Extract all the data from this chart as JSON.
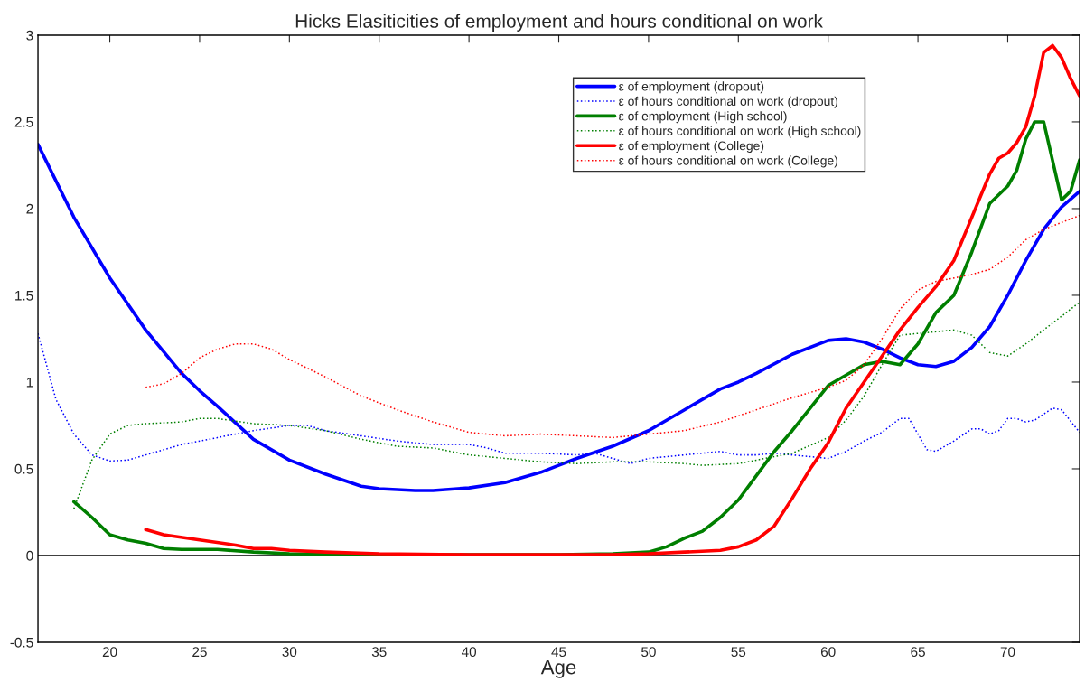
{
  "chart_data": {
    "type": "line",
    "title": "Hicks Elasiticities of employment and hours conditional on work",
    "xlabel": "Age",
    "xlim": [
      16,
      74
    ],
    "xticks": [
      20,
      25,
      30,
      35,
      40,
      45,
      50,
      55,
      60,
      65,
      70
    ],
    "ylim": [
      -0.5,
      3
    ],
    "yticks": [
      -0.5,
      0,
      0.5,
      1,
      1.5,
      2,
      2.5,
      3
    ],
    "grid": false,
    "legend": "top right",
    "ref_lines": [
      {
        "axis": "y",
        "value": 0,
        "color": "#000000",
        "line_style": "solid"
      }
    ],
    "series": [
      {
        "name": "ε of employment (dropout)",
        "color": "#0000ff",
        "line_style": "solid",
        "x": [
          16,
          18,
          20,
          22,
          24,
          25,
          26,
          28,
          30,
          32,
          34,
          35,
          37,
          38,
          40,
          42,
          44,
          45,
          46,
          48,
          50,
          52,
          54,
          55,
          56,
          58,
          60,
          61,
          62,
          63,
          64,
          65,
          66,
          67,
          68,
          69,
          70,
          71,
          72,
          73,
          74
        ],
        "values": [
          2.37,
          1.95,
          1.6,
          1.3,
          1.05,
          0.95,
          0.86,
          0.67,
          0.55,
          0.47,
          0.4,
          0.385,
          0.375,
          0.375,
          0.39,
          0.42,
          0.48,
          0.52,
          0.56,
          0.63,
          0.72,
          0.84,
          0.96,
          1.0,
          1.05,
          1.16,
          1.24,
          1.25,
          1.23,
          1.19,
          1.14,
          1.1,
          1.09,
          1.12,
          1.2,
          1.32,
          1.5,
          1.7,
          1.88,
          2.01,
          2.1
        ]
      },
      {
        "name": "ε of hours conditional on work (dropout)",
        "color": "#0000ff",
        "line_style": "dotted",
        "x": [
          16,
          17,
          18,
          19,
          20,
          21,
          22,
          24,
          26,
          28,
          30,
          31,
          32,
          34,
          36,
          38,
          40,
          41,
          42,
          44,
          46,
          47,
          48,
          49,
          50,
          52,
          54,
          55,
          56,
          57,
          58,
          59,
          60,
          61,
          62,
          63,
          64,
          64.5,
          65.5,
          66,
          67,
          68,
          68.5,
          69,
          69.5,
          70,
          70.5,
          71,
          71.5,
          72.5,
          73,
          74
        ],
        "values": [
          1.28,
          0.9,
          0.7,
          0.58,
          0.545,
          0.55,
          0.58,
          0.64,
          0.68,
          0.72,
          0.75,
          0.75,
          0.72,
          0.69,
          0.66,
          0.64,
          0.64,
          0.62,
          0.59,
          0.59,
          0.58,
          0.59,
          0.56,
          0.53,
          0.56,
          0.58,
          0.6,
          0.58,
          0.58,
          0.59,
          0.58,
          0.57,
          0.56,
          0.6,
          0.66,
          0.71,
          0.79,
          0.79,
          0.61,
          0.6,
          0.66,
          0.73,
          0.73,
          0.7,
          0.72,
          0.79,
          0.79,
          0.77,
          0.78,
          0.85,
          0.84,
          0.71
        ]
      },
      {
        "name": "ε of employment (High school)",
        "color": "#007f00",
        "line_style": "solid",
        "x": [
          18,
          19,
          20,
          21,
          22,
          23,
          24,
          26,
          28,
          30,
          35,
          40,
          45,
          48,
          50,
          51,
          52,
          53,
          54,
          55,
          56,
          57,
          58,
          59,
          60,
          61,
          62,
          63,
          64,
          65,
          66,
          67,
          68,
          69,
          70,
          70.5,
          71,
          71.5,
          72,
          73,
          73.5,
          74
        ],
        "values": [
          0.31,
          0.22,
          0.12,
          0.09,
          0.07,
          0.04,
          0.035,
          0.035,
          0.02,
          0.01,
          0.005,
          0.005,
          0.005,
          0.01,
          0.02,
          0.05,
          0.1,
          0.14,
          0.22,
          0.32,
          0.46,
          0.6,
          0.72,
          0.85,
          0.98,
          1.04,
          1.1,
          1.12,
          1.1,
          1.22,
          1.4,
          1.5,
          1.75,
          2.03,
          2.13,
          2.22,
          2.4,
          2.5,
          2.5,
          2.05,
          2.1,
          2.28
        ]
      },
      {
        "name": "ε of hours conditional on work (High school)",
        "color": "#007f00",
        "line_style": "dotted",
        "x": [
          18,
          19,
          20,
          21,
          22,
          24,
          25,
          26,
          28,
          30,
          32,
          34,
          36,
          38,
          40,
          42,
          44,
          46,
          48,
          50,
          52,
          53,
          55,
          56,
          58,
          60,
          61,
          62,
          63,
          64,
          65,
          67,
          68,
          69,
          70,
          71,
          72,
          73,
          74
        ],
        "values": [
          0.27,
          0.55,
          0.7,
          0.75,
          0.76,
          0.77,
          0.79,
          0.79,
          0.76,
          0.75,
          0.72,
          0.67,
          0.63,
          0.62,
          0.58,
          0.56,
          0.54,
          0.53,
          0.54,
          0.54,
          0.53,
          0.52,
          0.53,
          0.55,
          0.59,
          0.68,
          0.78,
          0.92,
          1.1,
          1.27,
          1.28,
          1.3,
          1.27,
          1.17,
          1.15,
          1.22,
          1.3,
          1.38,
          1.46
        ]
      },
      {
        "name": "ε of employment (College)",
        "color": "#ff0000",
        "line_style": "solid",
        "x": [
          22,
          23,
          25,
          27,
          28,
          29,
          30,
          32,
          35,
          40,
          45,
          48,
          50,
          52,
          54,
          55,
          56,
          57,
          58,
          59,
          60,
          61,
          62,
          63,
          64,
          65,
          66,
          67,
          68,
          69,
          69.5,
          70,
          70.5,
          71,
          71.5,
          72,
          72.5,
          73,
          73.5,
          74
        ],
        "values": [
          0.15,
          0.12,
          0.09,
          0.06,
          0.04,
          0.04,
          0.03,
          0.02,
          0.01,
          0.005,
          0.005,
          0.005,
          0.01,
          0.02,
          0.03,
          0.05,
          0.09,
          0.17,
          0.33,
          0.5,
          0.65,
          0.85,
          1.0,
          1.15,
          1.3,
          1.43,
          1.55,
          1.7,
          1.95,
          2.2,
          2.29,
          2.32,
          2.38,
          2.47,
          2.65,
          2.9,
          2.94,
          2.87,
          2.75,
          2.65
        ]
      },
      {
        "name": "ε of hours conditional on work (College)",
        "color": "#ff0000",
        "line_style": "dotted",
        "x": [
          22,
          23,
          24,
          25,
          26,
          27,
          28,
          29,
          30,
          32,
          34,
          36,
          38,
          40,
          42,
          44,
          46,
          48,
          50,
          52,
          54,
          56,
          58,
          60,
          61,
          62,
          63,
          64,
          65,
          66,
          68,
          69,
          70,
          71,
          72,
          73,
          74
        ],
        "values": [
          0.97,
          0.99,
          1.05,
          1.14,
          1.19,
          1.22,
          1.22,
          1.19,
          1.13,
          1.03,
          0.92,
          0.84,
          0.77,
          0.71,
          0.69,
          0.7,
          0.69,
          0.68,
          0.7,
          0.72,
          0.77,
          0.84,
          0.91,
          0.97,
          1.01,
          1.1,
          1.25,
          1.42,
          1.53,
          1.58,
          1.62,
          1.65,
          1.72,
          1.82,
          1.88,
          1.92,
          1.96
        ]
      }
    ]
  }
}
